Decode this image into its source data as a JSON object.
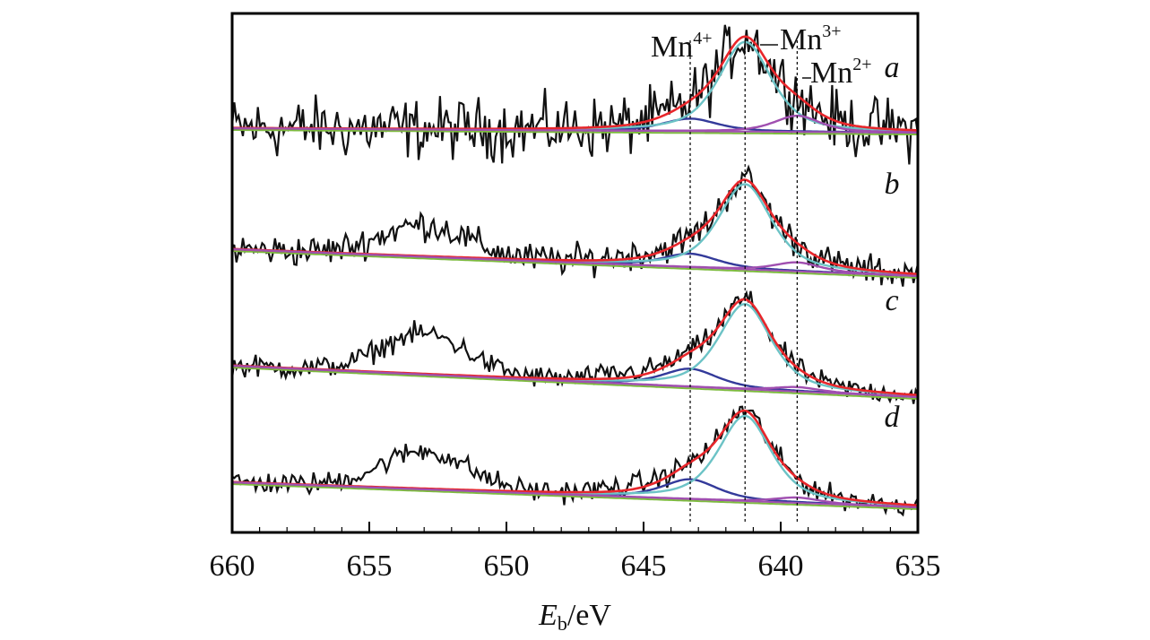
{
  "chart_data": {
    "type": "line",
    "title": "",
    "xlabel_main": "E",
    "xlabel_sub": "b",
    "xlabel_rest": "/eV",
    "ylabel": "",
    "xlim": [
      660,
      635
    ],
    "x_ticks": [
      660,
      655,
      650,
      645,
      640,
      635
    ],
    "x_tick_labels": [
      "660",
      "655",
      "650",
      "645",
      "640",
      "635"
    ],
    "reference_lines": [
      643.3,
      641.3,
      639.4
    ],
    "annotations": [
      {
        "base": "Mn",
        "sup": "4+",
        "x": 643.3
      },
      {
        "base": "Mn",
        "sup": "3+",
        "x": 641.3
      },
      {
        "base": "Mn",
        "sup": "2+",
        "x": 639.4
      }
    ],
    "spectra": [
      {
        "label": "a",
        "offset": 3,
        "baseline_start": 0.05,
        "baseline_end": 0.0,
        "satellite_amp": 0.0,
        "noise": 0.28,
        "components": [
          {
            "name": "Mn4+",
            "center": 643.3,
            "amp": 0.14,
            "width": 1.2
          },
          {
            "name": "Mn3+",
            "center": 641.3,
            "amp": 1.0,
            "width": 1.15
          },
          {
            "name": "Mn2+",
            "center": 639.4,
            "amp": 0.18,
            "width": 1.0
          }
        ]
      },
      {
        "label": "b",
        "offset": 2,
        "baseline_start": 0.0,
        "baseline_end": -0.3,
        "satellite_amp": 0.35,
        "noise": 0.14,
        "components": [
          {
            "name": "Mn4+",
            "center": 643.3,
            "amp": 0.15,
            "width": 1.2
          },
          {
            "name": "Mn3+",
            "center": 641.3,
            "amp": 0.95,
            "width": 1.15
          },
          {
            "name": "Mn2+",
            "center": 639.4,
            "amp": 0.1,
            "width": 1.0
          }
        ]
      },
      {
        "label": "c",
        "offset": 1,
        "baseline_start": 0.0,
        "baseline_end": -0.35,
        "satellite_amp": 0.45,
        "noise": 0.1,
        "components": [
          {
            "name": "Mn4+",
            "center": 643.3,
            "amp": 0.2,
            "width": 1.2
          },
          {
            "name": "Mn3+",
            "center": 641.3,
            "amp": 0.95,
            "width": 1.15
          },
          {
            "name": "Mn2+",
            "center": 639.4,
            "amp": 0.05,
            "width": 1.0
          }
        ]
      },
      {
        "label": "d",
        "offset": 0,
        "baseline_start": 0.0,
        "baseline_end": -0.28,
        "satellite_amp": 0.42,
        "noise": 0.1,
        "components": [
          {
            "name": "Mn4+",
            "center": 643.3,
            "amp": 0.22,
            "width": 1.2
          },
          {
            "name": "Mn3+",
            "center": 641.3,
            "amp": 0.95,
            "width": 1.15
          },
          {
            "name": "Mn2+",
            "center": 639.4,
            "amp": 0.06,
            "width": 1.0
          }
        ]
      }
    ],
    "colors": {
      "raw": "#111111",
      "envelope": "#e8262b",
      "Mn3+": "#6cc3c6",
      "Mn4+": "#333a9a",
      "Mn2+": "#a04fb0",
      "baseline": "#a04fb0",
      "background": "#7dbb3e",
      "frame": "#000000",
      "reference": "#000000"
    }
  }
}
